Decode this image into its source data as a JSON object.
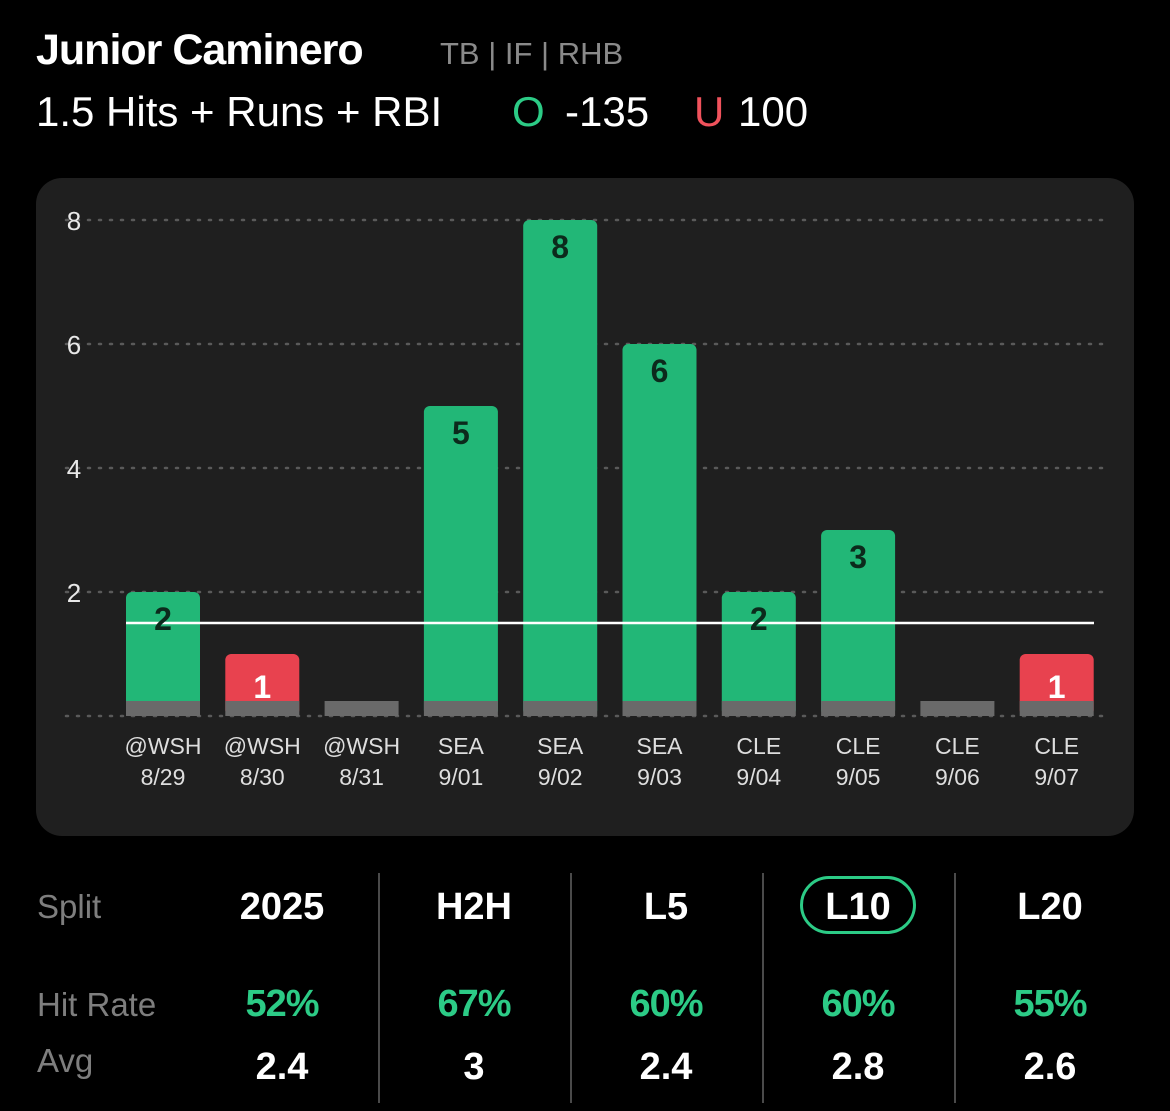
{
  "player": {
    "name": "Junior Caminero",
    "meta": "TB | IF | RHB"
  },
  "prop": {
    "line": "1.5 Hits + Runs + RBI",
    "over_label": "O",
    "over_odds": "-135",
    "under_label": "U",
    "under_odds": "100"
  },
  "colors": {
    "hit": "#22b777",
    "miss": "#e8424f",
    "zero": "#6a6a6a",
    "accent": "#2ccb86",
    "card": "#1f1f1f"
  },
  "chart_data": {
    "type": "bar",
    "y_ticks": [
      "8",
      "6",
      "4",
      "2"
    ],
    "ylim": [
      0,
      8
    ],
    "threshold": 1.5,
    "categories": [
      {
        "opp": "@WSH",
        "date": "8/29"
      },
      {
        "opp": "@WSH",
        "date": "8/30"
      },
      {
        "opp": "@WSH",
        "date": "8/31"
      },
      {
        "opp": "SEA",
        "date": "9/01"
      },
      {
        "opp": "SEA",
        "date": "9/02"
      },
      {
        "opp": "SEA",
        "date": "9/03"
      },
      {
        "opp": "CLE",
        "date": "9/04"
      },
      {
        "opp": "CLE",
        "date": "9/05"
      },
      {
        "opp": "CLE",
        "date": "9/06"
      },
      {
        "opp": "CLE",
        "date": "9/07"
      }
    ],
    "values": [
      2,
      1,
      0,
      5,
      8,
      6,
      2,
      3,
      0,
      1
    ]
  },
  "splits": {
    "split_label": "Split",
    "hit_rate_label": "Hit Rate",
    "avg_label": "Avg",
    "columns": [
      {
        "name": "2025",
        "hit_rate": "52%",
        "avg": "2.4"
      },
      {
        "name": "H2H",
        "hit_rate": "67%",
        "avg": "3"
      },
      {
        "name": "L5",
        "hit_rate": "60%",
        "avg": "2.4"
      },
      {
        "name": "L10",
        "hit_rate": "60%",
        "avg": "2.8"
      },
      {
        "name": "L20",
        "hit_rate": "55%",
        "avg": "2.6"
      }
    ]
  }
}
